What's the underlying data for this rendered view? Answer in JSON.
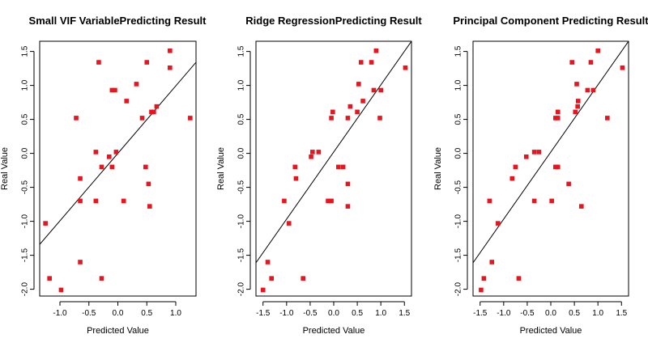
{
  "chart_data": [
    {
      "type": "scatter",
      "title": "Small VIF VariablePredicting Result",
      "xlabel": "Predicted Value",
      "ylabel": "Real Value",
      "xlim": [
        -1.35,
        1.35
      ],
      "ylim": [
        -2.1,
        1.65
      ],
      "xticks": [
        -1.0,
        -0.5,
        0.0,
        0.5,
        1.0
      ],
      "xtick_labels": [
        "-1.0",
        "-0.5",
        "0.0",
        "0.5",
        "1.0"
      ],
      "yticks": [
        -2.0,
        -1.5,
        -1.0,
        -0.5,
        0.0,
        0.5,
        1.0,
        1.5
      ],
      "ytick_labels": [
        "-2.0",
        "-1.5",
        "-1.0",
        "-0.5",
        "0.0",
        "0.5",
        "1.0",
        "1.5"
      ],
      "marker_color": "#e8141e",
      "line": {
        "x": [
          -1.35,
          1.35
        ],
        "y": [
          -1.34,
          1.34
        ]
      },
      "points": [
        {
          "x": 0.9,
          "y": 1.51
        },
        {
          "x": 0.9,
          "y": 1.26
        },
        {
          "x": -0.33,
          "y": 1.34
        },
        {
          "x": 0.5,
          "y": 1.34
        },
        {
          "x": 0.32,
          "y": 1.02
        },
        {
          "x": -0.1,
          "y": 0.93
        },
        {
          "x": -0.05,
          "y": 0.93
        },
        {
          "x": 0.15,
          "y": 0.77
        },
        {
          "x": 0.67,
          "y": 0.69
        },
        {
          "x": 0.58,
          "y": 0.61
        },
        {
          "x": 0.62,
          "y": 0.61
        },
        {
          "x": -0.72,
          "y": 0.52
        },
        {
          "x": 0.42,
          "y": 0.52
        },
        {
          "x": 1.25,
          "y": 0.52
        },
        {
          "x": -0.38,
          "y": 0.02
        },
        {
          "x": -0.03,
          "y": 0.02
        },
        {
          "x": -0.15,
          "y": -0.05
        },
        {
          "x": -0.28,
          "y": -0.2
        },
        {
          "x": -0.1,
          "y": -0.2
        },
        {
          "x": 0.48,
          "y": -0.2
        },
        {
          "x": -0.65,
          "y": -0.37
        },
        {
          "x": 0.53,
          "y": -0.45
        },
        {
          "x": -0.65,
          "y": -0.7
        },
        {
          "x": -0.38,
          "y": -0.7
        },
        {
          "x": 0.1,
          "y": -0.7
        },
        {
          "x": 0.55,
          "y": -0.78
        },
        {
          "x": -1.25,
          "y": -1.03
        },
        {
          "x": -0.65,
          "y": -1.6
        },
        {
          "x": -1.18,
          "y": -1.84
        },
        {
          "x": -0.28,
          "y": -1.84
        },
        {
          "x": -0.98,
          "y": -2.01
        }
      ]
    },
    {
      "type": "scatter",
      "title": "Ridge RegressionPredicting Result",
      "xlabel": "Predicted Value",
      "ylabel": "Real Value",
      "xlim": [
        -1.65,
        1.65
      ],
      "ylim": [
        -2.1,
        1.65
      ],
      "xticks": [
        -1.5,
        -1.0,
        -0.5,
        0.0,
        0.5,
        1.0,
        1.5
      ],
      "xtick_labels": [
        "-1.5",
        "-1.0",
        "-0.5",
        "0.0",
        "0.5",
        "1.0",
        "1.5"
      ],
      "yticks": [
        -2.0,
        -1.5,
        -1.0,
        -0.5,
        0.0,
        0.5,
        1.0,
        1.5
      ],
      "ytick_labels": [
        "-2.0",
        "-1.5",
        "-1.0",
        "-0.5",
        "0.0",
        "0.5",
        "1.0",
        "1.5"
      ],
      "marker_color": "#e8141e",
      "line": {
        "x": [
          -1.65,
          1.65
        ],
        "y": [
          -1.61,
          1.65
        ]
      },
      "points": [
        {
          "x": 0.9,
          "y": 1.51
        },
        {
          "x": 0.58,
          "y": 1.34
        },
        {
          "x": 0.8,
          "y": 1.34
        },
        {
          "x": 1.52,
          "y": 1.26
        },
        {
          "x": 0.53,
          "y": 1.02
        },
        {
          "x": 0.85,
          "y": 0.93
        },
        {
          "x": 1.0,
          "y": 0.93
        },
        {
          "x": 0.62,
          "y": 0.77
        },
        {
          "x": 0.35,
          "y": 0.69
        },
        {
          "x": -0.02,
          "y": 0.61
        },
        {
          "x": 0.5,
          "y": 0.61
        },
        {
          "x": -0.05,
          "y": 0.52
        },
        {
          "x": 0.3,
          "y": 0.52
        },
        {
          "x": 0.98,
          "y": 0.52
        },
        {
          "x": -0.45,
          "y": 0.02
        },
        {
          "x": -0.32,
          "y": 0.02
        },
        {
          "x": -0.48,
          "y": -0.05
        },
        {
          "x": -0.82,
          "y": -0.2
        },
        {
          "x": 0.1,
          "y": -0.2
        },
        {
          "x": 0.2,
          "y": -0.2
        },
        {
          "x": -0.8,
          "y": -0.37
        },
        {
          "x": 0.3,
          "y": -0.45
        },
        {
          "x": -1.05,
          "y": -0.7
        },
        {
          "x": -0.12,
          "y": -0.7
        },
        {
          "x": -0.05,
          "y": -0.7
        },
        {
          "x": 0.3,
          "y": -0.78
        },
        {
          "x": -0.95,
          "y": -1.03
        },
        {
          "x": -1.4,
          "y": -1.6
        },
        {
          "x": -1.32,
          "y": -1.84
        },
        {
          "x": -0.65,
          "y": -1.84
        },
        {
          "x": -1.5,
          "y": -2.01
        }
      ]
    },
    {
      "type": "scatter",
      "title": "Principal Component Predicting Result",
      "xlabel": "Predicted Value",
      "ylabel": "Real Value",
      "xlim": [
        -1.65,
        1.65
      ],
      "ylim": [
        -2.1,
        1.65
      ],
      "xticks": [
        -1.5,
        -1.0,
        -0.5,
        0.0,
        0.5,
        1.0,
        1.5
      ],
      "xtick_labels": [
        "-1.5",
        "-1.0",
        "-0.5",
        "0.0",
        "0.5",
        "1.0",
        "1.5"
      ],
      "yticks": [
        -2.0,
        -1.5,
        -1.0,
        -0.5,
        0.0,
        0.5,
        1.0,
        1.5
      ],
      "ytick_labels": [
        "-2.0",
        "-1.5",
        "-1.0",
        "-0.5",
        "0.0",
        "0.5",
        "1.0",
        "1.5"
      ],
      "marker_color": "#e8141e",
      "line": {
        "x": [
          -1.65,
          1.65
        ],
        "y": [
          -1.61,
          1.65
        ]
      },
      "points": [
        {
          "x": 1.0,
          "y": 1.51
        },
        {
          "x": 0.45,
          "y": 1.34
        },
        {
          "x": 0.85,
          "y": 1.34
        },
        {
          "x": 1.52,
          "y": 1.26
        },
        {
          "x": 0.55,
          "y": 1.02
        },
        {
          "x": 0.78,
          "y": 0.93
        },
        {
          "x": 0.9,
          "y": 0.93
        },
        {
          "x": 0.58,
          "y": 0.77
        },
        {
          "x": 0.57,
          "y": 0.69
        },
        {
          "x": 0.15,
          "y": 0.61
        },
        {
          "x": 0.52,
          "y": 0.61
        },
        {
          "x": 0.1,
          "y": 0.52
        },
        {
          "x": 0.15,
          "y": 0.52
        },
        {
          "x": 1.2,
          "y": 0.52
        },
        {
          "x": -0.35,
          "y": 0.02
        },
        {
          "x": -0.25,
          "y": 0.02
        },
        {
          "x": -0.52,
          "y": -0.05
        },
        {
          "x": -0.75,
          "y": -0.2
        },
        {
          "x": 0.1,
          "y": -0.2
        },
        {
          "x": 0.15,
          "y": -0.2
        },
        {
          "x": -0.82,
          "y": -0.37
        },
        {
          "x": 0.38,
          "y": -0.45
        },
        {
          "x": -1.3,
          "y": -0.7
        },
        {
          "x": -0.35,
          "y": -0.7
        },
        {
          "x": 0.02,
          "y": -0.7
        },
        {
          "x": 0.65,
          "y": -0.78
        },
        {
          "x": -1.12,
          "y": -1.03
        },
        {
          "x": -1.25,
          "y": -1.6
        },
        {
          "x": -1.42,
          "y": -1.84
        },
        {
          "x": -0.68,
          "y": -1.84
        },
        {
          "x": -1.48,
          "y": -2.01
        }
      ]
    }
  ]
}
